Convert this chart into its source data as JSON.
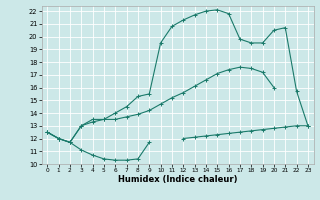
{
  "xlabel": "Humidex (Indice chaleur)",
  "bg_color": "#cce8e8",
  "grid_color": "#ffffff",
  "line_color": "#1a7a6a",
  "xlim": [
    -0.5,
    23.5
  ],
  "ylim": [
    10,
    22.4
  ],
  "xticks": [
    0,
    1,
    2,
    3,
    4,
    5,
    6,
    7,
    8,
    9,
    10,
    11,
    12,
    13,
    14,
    15,
    16,
    17,
    18,
    19,
    20,
    21,
    22,
    23
  ],
  "yticks": [
    10,
    11,
    12,
    13,
    14,
    15,
    16,
    17,
    18,
    19,
    20,
    21,
    22
  ],
  "s1x": [
    0,
    1,
    2,
    3,
    4,
    5,
    6,
    7,
    8,
    9
  ],
  "s1y": [
    12.5,
    12.0,
    11.7,
    11.1,
    10.7,
    10.4,
    10.3,
    10.3,
    10.4,
    11.7
  ],
  "s2x": [
    0,
    1,
    2,
    3,
    4,
    5,
    6,
    7,
    8,
    9,
    10,
    11,
    12,
    13,
    14,
    15,
    16,
    17,
    18,
    19,
    20
  ],
  "s2y": [
    12.5,
    12.0,
    11.7,
    13.0,
    13.3,
    13.5,
    13.5,
    13.7,
    13.9,
    14.2,
    14.7,
    15.2,
    15.6,
    16.1,
    16.6,
    17.1,
    17.4,
    17.6,
    17.5,
    17.2,
    16.0
  ],
  "s3x": [
    0,
    1,
    2,
    3,
    4,
    5,
    6,
    7,
    8,
    9,
    10,
    11,
    12,
    13,
    14,
    15,
    16,
    17,
    18,
    19,
    20,
    21,
    22,
    23
  ],
  "s3y": [
    12.5,
    12.0,
    11.7,
    13.0,
    13.5,
    13.5,
    14.0,
    14.5,
    15.3,
    15.5,
    19.5,
    20.8,
    21.3,
    21.7,
    22.0,
    22.1,
    21.8,
    19.8,
    19.5,
    19.5,
    20.5,
    20.7,
    15.7,
    13.0
  ],
  "s4x": [
    12,
    13,
    14,
    15,
    16,
    17,
    18,
    19,
    20,
    21,
    22,
    23
  ],
  "s4y": [
    12.0,
    12.1,
    12.2,
    12.3,
    12.4,
    12.5,
    12.6,
    12.7,
    12.8,
    12.9,
    13.0,
    13.0
  ]
}
